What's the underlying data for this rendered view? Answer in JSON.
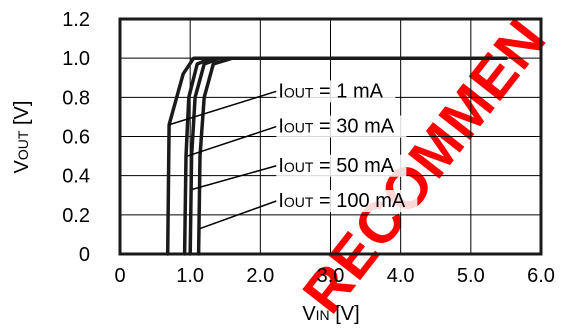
{
  "chart_data": {
    "type": "line",
    "xlabel": {
      "main": "V",
      "sub": "IN",
      "unit": " [V]"
    },
    "ylabel": {
      "main": "V",
      "sub": "OUT",
      "unit": " [V]"
    },
    "xlim": [
      0,
      6.0
    ],
    "ylim": [
      0,
      1.2
    ],
    "x_ticks": [
      "0",
      "1.0",
      "2.0",
      "3.0",
      "4.0",
      "5.0",
      "6.0"
    ],
    "y_ticks": [
      "0",
      "0.2",
      "0.4",
      "0.6",
      "0.8",
      "1.0",
      "1.2"
    ],
    "grid": true,
    "series": [
      {
        "name": "IOUT = 1 mA",
        "label": {
          "main": "I",
          "sub": "OUT",
          "rest": " = 1 mA"
        },
        "points": [
          [
            0.68,
            0
          ],
          [
            0.7,
            0.66
          ],
          [
            0.9,
            0.92
          ],
          [
            1.05,
            1.0
          ],
          [
            5.5,
            1.0
          ]
        ]
      },
      {
        "name": "IOUT = 30 mA",
        "label": {
          "main": "I",
          "sub": "OUT",
          "rest": " = 30 mA"
        },
        "points": [
          [
            0.92,
            0
          ],
          [
            0.94,
            0.5
          ],
          [
            0.98,
            0.8
          ],
          [
            1.1,
            0.97
          ],
          [
            1.3,
            1.0
          ],
          [
            5.5,
            1.0
          ]
        ]
      },
      {
        "name": "IOUT = 50 mA",
        "label": {
          "main": "I",
          "sub": "OUT",
          "rest": " = 50 mA"
        },
        "points": [
          [
            1.0,
            0
          ],
          [
            1.02,
            0.5
          ],
          [
            1.07,
            0.8
          ],
          [
            1.2,
            0.97
          ],
          [
            1.42,
            1.0
          ],
          [
            5.5,
            1.0
          ]
        ]
      },
      {
        "name": "IOUT = 100 mA",
        "label": {
          "main": "I",
          "sub": "OUT",
          "rest": " = 100 mA"
        },
        "points": [
          [
            1.12,
            0
          ],
          [
            1.14,
            0.5
          ],
          [
            1.2,
            0.8
          ],
          [
            1.33,
            0.97
          ],
          [
            1.6,
            1.0
          ],
          [
            5.5,
            1.0
          ]
        ]
      }
    ],
    "annotations": [
      {
        "series": 0,
        "text_at": [
          2.2,
          0.8
        ],
        "point": [
          0.7,
          0.66
        ]
      },
      {
        "series": 1,
        "text_at": [
          2.2,
          0.62
        ],
        "point": [
          0.96,
          0.5
        ]
      },
      {
        "series": 2,
        "text_at": [
          2.2,
          0.42
        ],
        "point": [
          1.03,
          0.33
        ]
      },
      {
        "series": 3,
        "text_at": [
          2.2,
          0.24
        ],
        "point": [
          1.14,
          0.13
        ]
      }
    ],
    "watermark": "RECOMMEN",
    "watermark_color": "#ff0000",
    "line_color": "#1a1a1a"
  }
}
